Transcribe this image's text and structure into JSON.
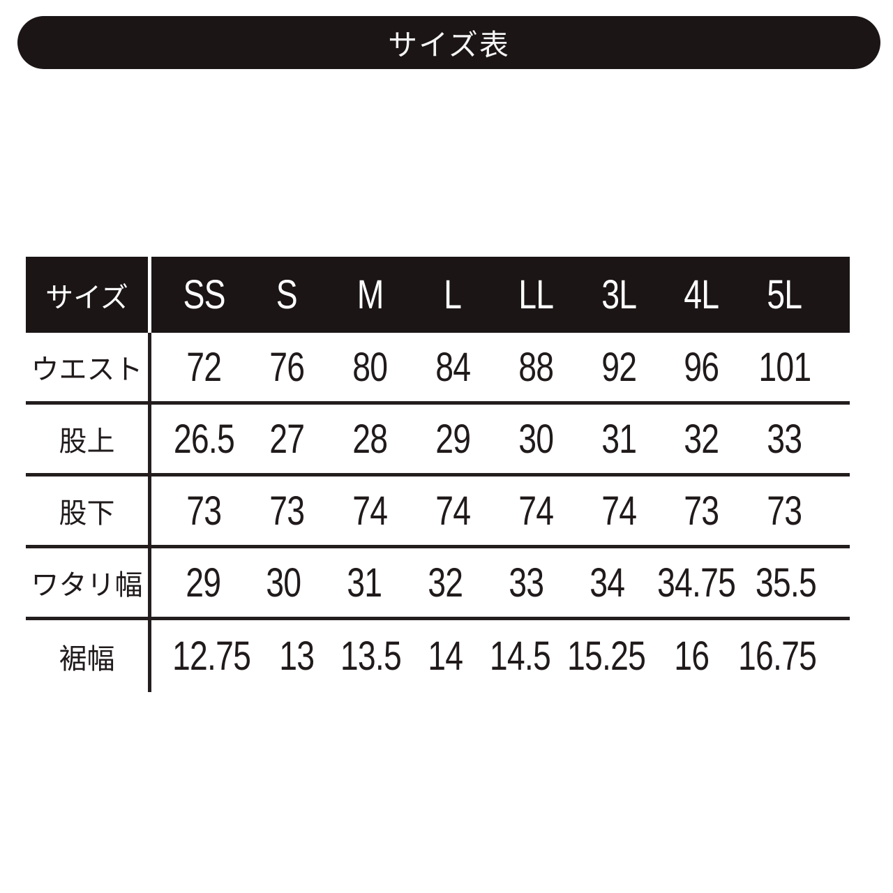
{
  "banner": {
    "title": "サイズ表"
  },
  "table": {
    "header": {
      "label": "サイズ",
      "sizes": [
        "SS",
        "S",
        "M",
        "L",
        "LL",
        "3L",
        "4L",
        "5L"
      ]
    },
    "rows": [
      {
        "label": "ウエスト",
        "values": [
          "72",
          "76",
          "80",
          "84",
          "88",
          "92",
          "96",
          "101"
        ]
      },
      {
        "label": "股上",
        "values": [
          "26.5",
          "27",
          "28",
          "29",
          "30",
          "31",
          "32",
          "33"
        ]
      },
      {
        "label": "股下",
        "values": [
          "73",
          "73",
          "74",
          "74",
          "74",
          "74",
          "73",
          "73"
        ]
      },
      {
        "label": "ワタリ幅",
        "values": [
          "29",
          "30",
          "31",
          "32",
          "33",
          "34",
          "34.75",
          "35.5"
        ]
      },
      {
        "label": "裾幅",
        "values": [
          "12.75",
          "13",
          "13.5",
          "14",
          "14.5",
          "15.25",
          "16",
          "16.75"
        ]
      }
    ]
  },
  "colors": {
    "ink": "#1b1516",
    "paper": "#ffffff"
  },
  "chart_data": {
    "type": "table",
    "title": "サイズ表",
    "columns": [
      "サイズ",
      "SS",
      "S",
      "M",
      "L",
      "LL",
      "3L",
      "4L",
      "5L"
    ],
    "rows": [
      [
        "ウエスト",
        72,
        76,
        80,
        84,
        88,
        92,
        96,
        101
      ],
      [
        "股上",
        26.5,
        27,
        28,
        29,
        30,
        31,
        32,
        33
      ],
      [
        "股下",
        73,
        73,
        74,
        74,
        74,
        74,
        73,
        73
      ],
      [
        "ワタリ幅",
        29,
        30,
        31,
        32,
        33,
        34,
        34.75,
        35.5
      ],
      [
        "裾幅",
        12.75,
        13,
        13.5,
        14,
        14.5,
        15.25,
        16,
        16.75
      ]
    ],
    "layout": {
      "header_background": "#1b1516",
      "header_text_color": "#ffffff",
      "row_divider": "horizontal-lines",
      "label_column_divider": "vertical-line"
    }
  }
}
